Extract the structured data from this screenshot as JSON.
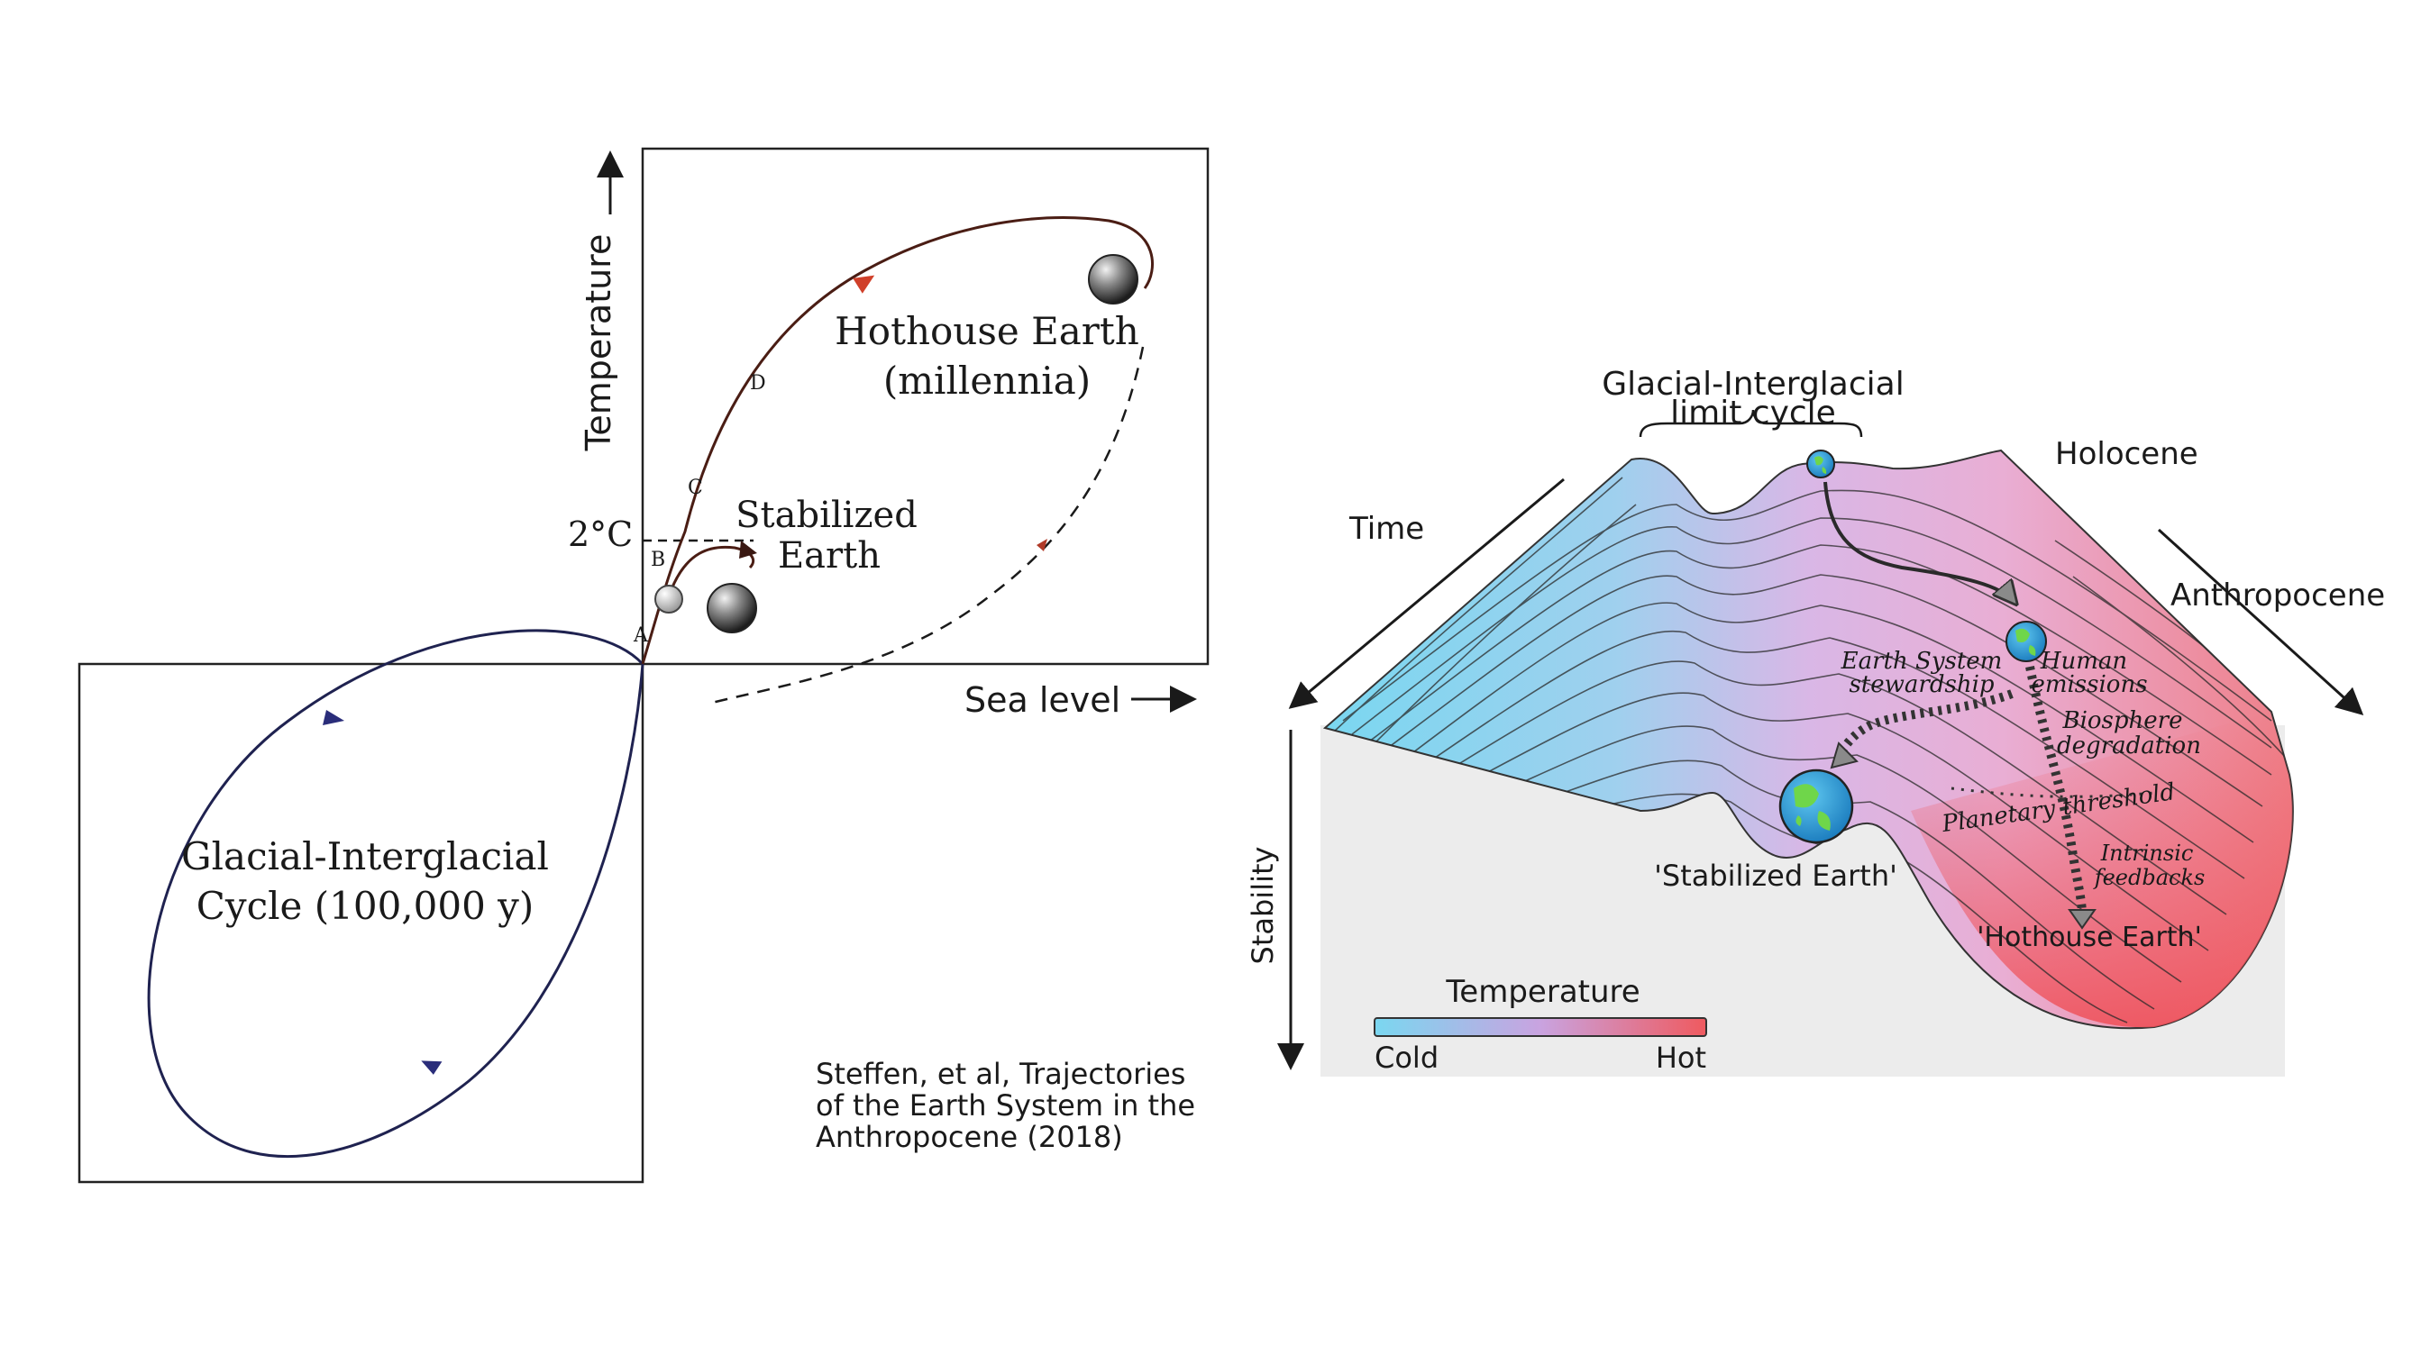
{
  "phase_diagram": {
    "y_axis_label": "Temperature",
    "x_axis_label": "Sea level",
    "two_degree_label": "2°C",
    "hothouse_label_line1": "Hothouse Earth",
    "hothouse_label_line2": "(millennia)",
    "stabilized_label_line1": "Stabilized",
    "stabilized_label_line2": "Earth",
    "glacial_label_line1": "Glacial-Interglacial",
    "glacial_label_line2": "Cycle (100,000 y)",
    "path_markers": [
      "A",
      "B",
      "C",
      "D"
    ]
  },
  "citation": {
    "line1": "Steffen, et al, Trajectories",
    "line2": "of the Earth System in the",
    "line3": "Anthropocene (2018)"
  },
  "landscape": {
    "limit_cycle_line1": "Glacial-Interglacial",
    "limit_cycle_line2": "limit cycle",
    "holocene": "Holocene",
    "time": "Time",
    "anthropocene": "Anthropocene",
    "stability": "Stability",
    "stewardship_line1": "Earth System",
    "stewardship_line2": "stewardship",
    "emissions_line1": "Human",
    "emissions_line2": "emissions",
    "biosphere_line1": "Biosphere",
    "biosphere_line2": "degradation",
    "threshold": "Planetary threshold",
    "feedbacks_line1": "Intrinsic",
    "feedbacks_line2": "feedbacks",
    "stabilized_earth": "'Stabilized Earth'",
    "hothouse_earth": "'Hothouse Earth'"
  },
  "legend": {
    "title": "Temperature",
    "cold": "Cold",
    "hot": "Hot",
    "cold_color": "#7ad7f0",
    "mid_color": "#c9a3e0",
    "hot_color": "#ef5a5f"
  }
}
